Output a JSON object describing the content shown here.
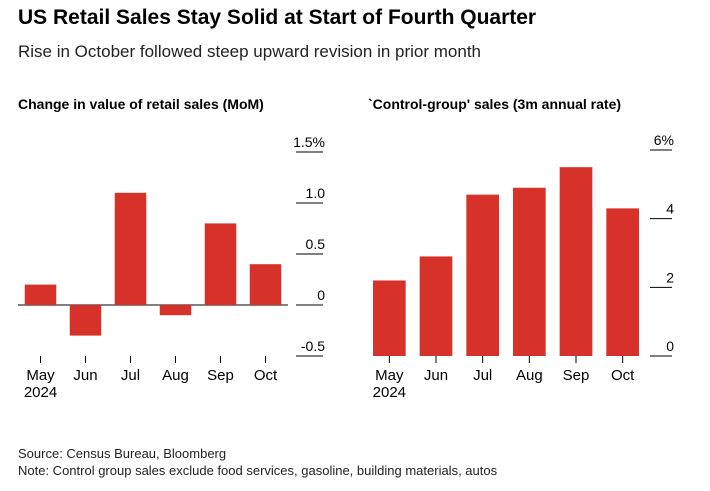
{
  "title": "US Retail Sales Stay Solid at Start of Fourth Quarter",
  "subtitle": "Rise in October followed steep upward revision in prior month",
  "source": "Source: Census Bureau, Bloomberg",
  "note": "Note: Control group sales exclude food services, gasoline, building materials, autos",
  "colors": {
    "bar": "#d6322a",
    "axis": "#000000"
  },
  "chart_data": [
    {
      "type": "bar",
      "title": "Change in value of retail sales (MoM)",
      "categories": [
        "May",
        "Jun",
        "Jul",
        "Aug",
        "Sep",
        "Oct"
      ],
      "category_year": "2024",
      "values": [
        0.2,
        -0.3,
        1.1,
        -0.1,
        0.8,
        0.4
      ],
      "ylim": [
        -0.5,
        1.5
      ],
      "yticks": [
        -0.5,
        0,
        0.5,
        1.0,
        1.5
      ],
      "ytick_labels": [
        "-0.5",
        "0",
        "0.5",
        "1.0",
        "1.5%"
      ],
      "axis_side": "right",
      "grid": false
    },
    {
      "type": "bar",
      "title": "`Control-group' sales (3m annual rate)",
      "categories": [
        "May",
        "Jun",
        "Jul",
        "Aug",
        "Sep",
        "Oct"
      ],
      "category_year": "2024",
      "values": [
        2.2,
        2.9,
        4.7,
        4.9,
        5.5,
        4.3
      ],
      "ylim": [
        0,
        6
      ],
      "yticks": [
        0,
        2,
        4,
        6
      ],
      "ytick_labels": [
        "0",
        "2",
        "4",
        "6%"
      ],
      "axis_side": "right",
      "grid": false
    }
  ]
}
